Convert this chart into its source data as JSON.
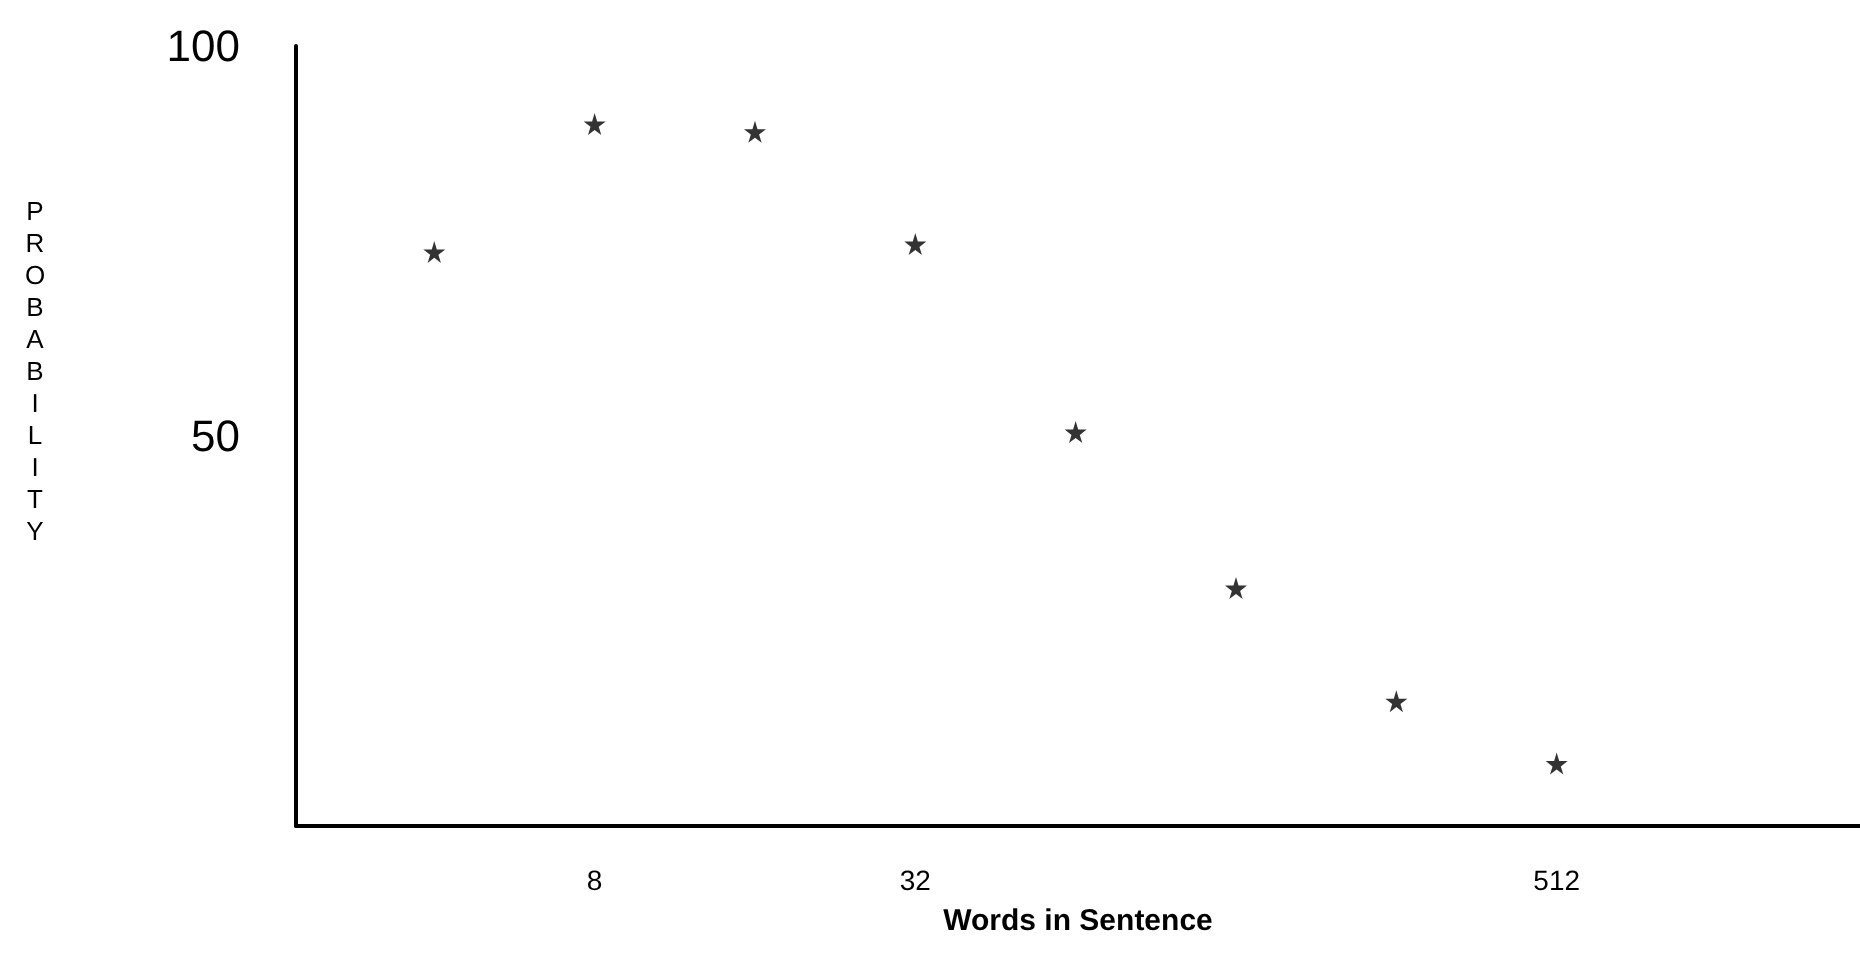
{
  "chart_data": {
    "type": "scatter",
    "x": [
      4,
      8,
      16,
      32,
      64,
      128,
      256,
      512
    ],
    "series": [
      {
        "color": "#000000",
        "values": [
          73.6,
          90,
          89,
          74.6,
          50.5,
          30.5,
          16,
          8
        ]
      }
    ],
    "xlabel": "Words in Sentence",
    "ylabel": "PROBABILITY",
    "log": "x",
    "xlim": [
      2.2,
      1900
    ],
    "xticks": [
      8,
      32,
      512
    ],
    "ylim": [
      0,
      100
    ],
    "yticks": [
      50,
      100
    ],
    "marker": "star"
  }
}
